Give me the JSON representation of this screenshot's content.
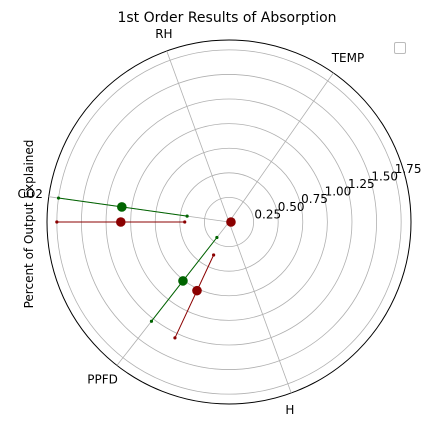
{
  "chart_data": {
    "type": "polar",
    "title": "1st Order Results of Absorption",
    "ylabel": "Percent of Output Explained",
    "categories": [
      "TEMP",
      "RH",
      "CO2",
      "PPFD",
      "H"
    ],
    "category_angles_deg": [
      55,
      110,
      172,
      232,
      290
    ],
    "r_ticks": [
      0.25,
      0.5,
      0.75,
      1.0,
      1.25,
      1.5,
      1.75
    ],
    "r_tick_labels": [
      "0.25",
      "0.50",
      "0.75",
      "1.00",
      "1.25",
      "1.50",
      "1.75"
    ],
    "rlim": [
      0,
      1.85
    ],
    "r_label_angle_deg": 18,
    "grid": true,
    "legend": {
      "placement": "top-right",
      "entries": []
    },
    "series": [
      {
        "color": "#006400",
        "points": [
          {
            "angle_deg": 172,
            "r": 1.1,
            "r_low": 0.43,
            "r_high": 1.75
          },
          {
            "angle_deg": 232,
            "r": 0.76,
            "r_low": 0.2,
            "r_high": 1.28
          }
        ]
      },
      {
        "color": "#8b0000",
        "points": [
          {
            "angle_deg": 0,
            "r": 0.02
          },
          {
            "angle_deg": 180,
            "r": 1.1,
            "r_low": 0.45,
            "r_high": 1.75
          },
          {
            "angle_deg": 245,
            "r": 0.77,
            "r_low": 0.37,
            "r_high": 1.3
          }
        ]
      }
    ]
  }
}
